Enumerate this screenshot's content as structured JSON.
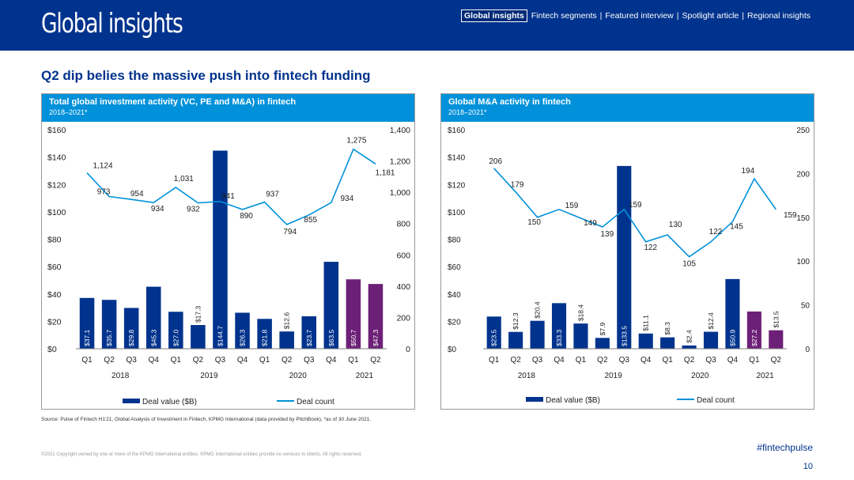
{
  "header": {
    "logo": "Global insights",
    "nav": {
      "active": "Global insights",
      "items": [
        "Fintech segments",
        "Featured interview",
        "Spotlight article",
        "Regional insights"
      ],
      "separator": "|"
    }
  },
  "page": {
    "title": "Q2 dip belies the massive push into fintech funding",
    "source": "Source: Pulse of Fintech H1'21, Global Analysis of Investment in Fintech, KPMG International (data provided by PitchBook), *as of 30 June 2021.",
    "copyright": "©2021 Copyright owned by one or more of the KPMG International entities. KPMG International entities provide no services to clients. All rights reserved.",
    "hashtag": "#fintechpulse",
    "page_number": "10"
  },
  "colors": {
    "brand": "#00338d",
    "panel_header": "#0091da",
    "bar": "#00338d",
    "bar_highlight": "#6d2077",
    "line": "#0091da"
  },
  "chart_data": [
    {
      "type": "bar",
      "title": "Total global investment activity (VC, PE and M&A) in fintech",
      "subtitle": "2018–2021*",
      "categories": [
        "Q1",
        "Q2",
        "Q3",
        "Q4",
        "Q1",
        "Q2",
        "Q3",
        "Q4",
        "Q1",
        "Q2",
        "Q3",
        "Q4",
        "Q1",
        "Q2"
      ],
      "year_groups": [
        {
          "label": "2018",
          "start": 0,
          "end": 3
        },
        {
          "label": "2019",
          "start": 4,
          "end": 7
        },
        {
          "label": "2020",
          "start": 8,
          "end": 11
        },
        {
          "label": "2021",
          "start": 12,
          "end": 13
        }
      ],
      "series": [
        {
          "name": "Deal value ($B)",
          "kind": "bar",
          "axis": "left",
          "values": [
            37.1,
            35.7,
            29.8,
            45.3,
            27.0,
            17.3,
            144.7,
            26.3,
            21.8,
            12.6,
            23.7,
            63.5,
            50.7,
            47.3
          ],
          "labels": [
            "$37.1",
            "$35.7",
            "$29.8",
            "$45.3",
            "$27.0",
            "$17.3",
            "$144.7",
            "$26.3",
            "$21.8",
            "$12.6",
            "$23.7",
            "$63.5",
            "$50.7",
            "$47.3"
          ],
          "highlight_from": 12
        },
        {
          "name": "Deal count",
          "kind": "line",
          "axis": "right",
          "values": [
            1124,
            973,
            954,
            934,
            1031,
            932,
            941,
            890,
            937,
            794,
            855,
            934,
            1275,
            1181
          ],
          "labels": [
            "1,124",
            "973",
            "954",
            "934",
            "1,031",
            "932",
            "941",
            "890",
            "937",
            "794",
            "855",
            "934",
            "1,275",
            "1,181"
          ]
        }
      ],
      "left_axis": {
        "min": 0,
        "max": 160,
        "ticks": [
          0,
          20,
          40,
          60,
          80,
          100,
          120,
          140,
          160
        ],
        "tick_labels": [
          "$0",
          "$20",
          "$40",
          "$60",
          "$80",
          "$100",
          "$120",
          "$140",
          "$160"
        ]
      },
      "right_axis": {
        "min": 0,
        "max": 1400,
        "ticks": [
          0,
          200,
          400,
          600,
          800,
          1000,
          1200,
          1400
        ],
        "tick_labels": [
          "0",
          "200",
          "400",
          "600",
          "800",
          "1,000",
          "1,200",
          "1,400"
        ]
      },
      "legend": [
        "Deal value ($B)",
        "Deal count"
      ]
    },
    {
      "type": "bar",
      "title": "Global M&A activity in fintech",
      "subtitle": "2018–2021*",
      "categories": [
        "Q1",
        "Q2",
        "Q3",
        "Q4",
        "Q1",
        "Q2",
        "Q3",
        "Q4",
        "Q1",
        "Q2",
        "Q3",
        "Q4",
        "Q1",
        "Q2"
      ],
      "year_groups": [
        {
          "label": "2018",
          "start": 0,
          "end": 3
        },
        {
          "label": "2019",
          "start": 4,
          "end": 7
        },
        {
          "label": "2020",
          "start": 8,
          "end": 11
        },
        {
          "label": "2021",
          "start": 12,
          "end": 13
        }
      ],
      "series": [
        {
          "name": "Deal value ($B)",
          "kind": "bar",
          "axis": "left",
          "values": [
            23.5,
            12.3,
            20.4,
            33.3,
            18.4,
            7.9,
            133.5,
            11.1,
            8.3,
            2.4,
            12.4,
            50.9,
            27.2,
            13.5
          ],
          "labels": [
            "$23.5",
            "$12.3",
            "$20.4",
            "$33.3",
            "$18.4",
            "$7.9",
            "$133.5",
            "$11.1",
            "$8.3",
            "$2.4",
            "$12.4",
            "$50.9",
            "$27.2",
            "$13.5"
          ],
          "highlight_from": 12
        },
        {
          "name": "Deal count",
          "kind": "line",
          "axis": "right",
          "values": [
            206,
            179,
            150,
            159,
            149,
            139,
            159,
            122,
            130,
            105,
            122,
            145,
            194,
            159
          ],
          "labels": [
            "206",
            "179",
            "150",
            "159",
            "149",
            "139",
            "159",
            "122",
            "130",
            "105",
            "122",
            "145",
            "194",
            "159"
          ]
        }
      ],
      "left_axis": {
        "min": 0,
        "max": 160,
        "ticks": [
          0,
          20,
          40,
          60,
          80,
          100,
          120,
          140,
          160
        ],
        "tick_labels": [
          "$0",
          "$20",
          "$40",
          "$60",
          "$80",
          "$100",
          "$120",
          "$140",
          "$160"
        ]
      },
      "right_axis": {
        "min": 0,
        "max": 250,
        "ticks": [
          0,
          50,
          100,
          150,
          200,
          250
        ],
        "tick_labels": [
          "0",
          "50",
          "100",
          "150",
          "200",
          "250"
        ]
      },
      "legend": [
        "Deal value ($B)",
        "Deal count"
      ]
    }
  ]
}
